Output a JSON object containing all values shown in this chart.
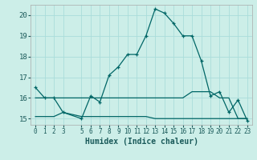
{
  "title": "",
  "xlabel": "Humidex (Indice chaleur)",
  "bg_color": "#cceee8",
  "grid_color": "#aaddda",
  "line_color": "#006666",
  "xlim": [
    -0.5,
    23.5
  ],
  "ylim": [
    14.7,
    20.5
  ],
  "yticks": [
    15,
    16,
    17,
    18,
    19,
    20
  ],
  "xticks": [
    0,
    1,
    2,
    3,
    5,
    6,
    7,
    8,
    9,
    10,
    11,
    12,
    13,
    14,
    15,
    16,
    17,
    18,
    19,
    20,
    21,
    22,
    23
  ],
  "series1_x": [
    0,
    1,
    2,
    3,
    5,
    6,
    7,
    8,
    9,
    10,
    11,
    12,
    13,
    14,
    15,
    16,
    17,
    18,
    19,
    20,
    21,
    22,
    23
  ],
  "series1_y": [
    16.5,
    16.0,
    16.0,
    15.3,
    15.0,
    16.1,
    15.8,
    17.1,
    17.5,
    18.1,
    18.1,
    19.0,
    20.3,
    20.1,
    19.6,
    19.0,
    19.0,
    17.8,
    16.1,
    16.3,
    15.3,
    15.9,
    14.9
  ],
  "series2_x": [
    0,
    1,
    2,
    3,
    5,
    6,
    7,
    8,
    9,
    10,
    11,
    12,
    13,
    14,
    15,
    16,
    17,
    18,
    19,
    20,
    21,
    22,
    23
  ],
  "series2_y": [
    16.0,
    16.0,
    16.0,
    16.0,
    16.0,
    16.0,
    16.0,
    16.0,
    16.0,
    16.0,
    16.0,
    16.0,
    16.0,
    16.0,
    16.0,
    16.0,
    16.3,
    16.3,
    16.3,
    16.0,
    16.0,
    15.0,
    15.0
  ],
  "series3_x": [
    0,
    1,
    2,
    3,
    5,
    6,
    7,
    8,
    9,
    10,
    11,
    12,
    13,
    14,
    15,
    16,
    17,
    18,
    19,
    20,
    21,
    22,
    23
  ],
  "series3_y": [
    15.1,
    15.1,
    15.1,
    15.3,
    15.1,
    15.1,
    15.1,
    15.1,
    15.1,
    15.1,
    15.1,
    15.1,
    15.0,
    15.0,
    15.0,
    15.0,
    15.0,
    15.0,
    15.0,
    15.0,
    15.0,
    15.0,
    15.0
  ]
}
